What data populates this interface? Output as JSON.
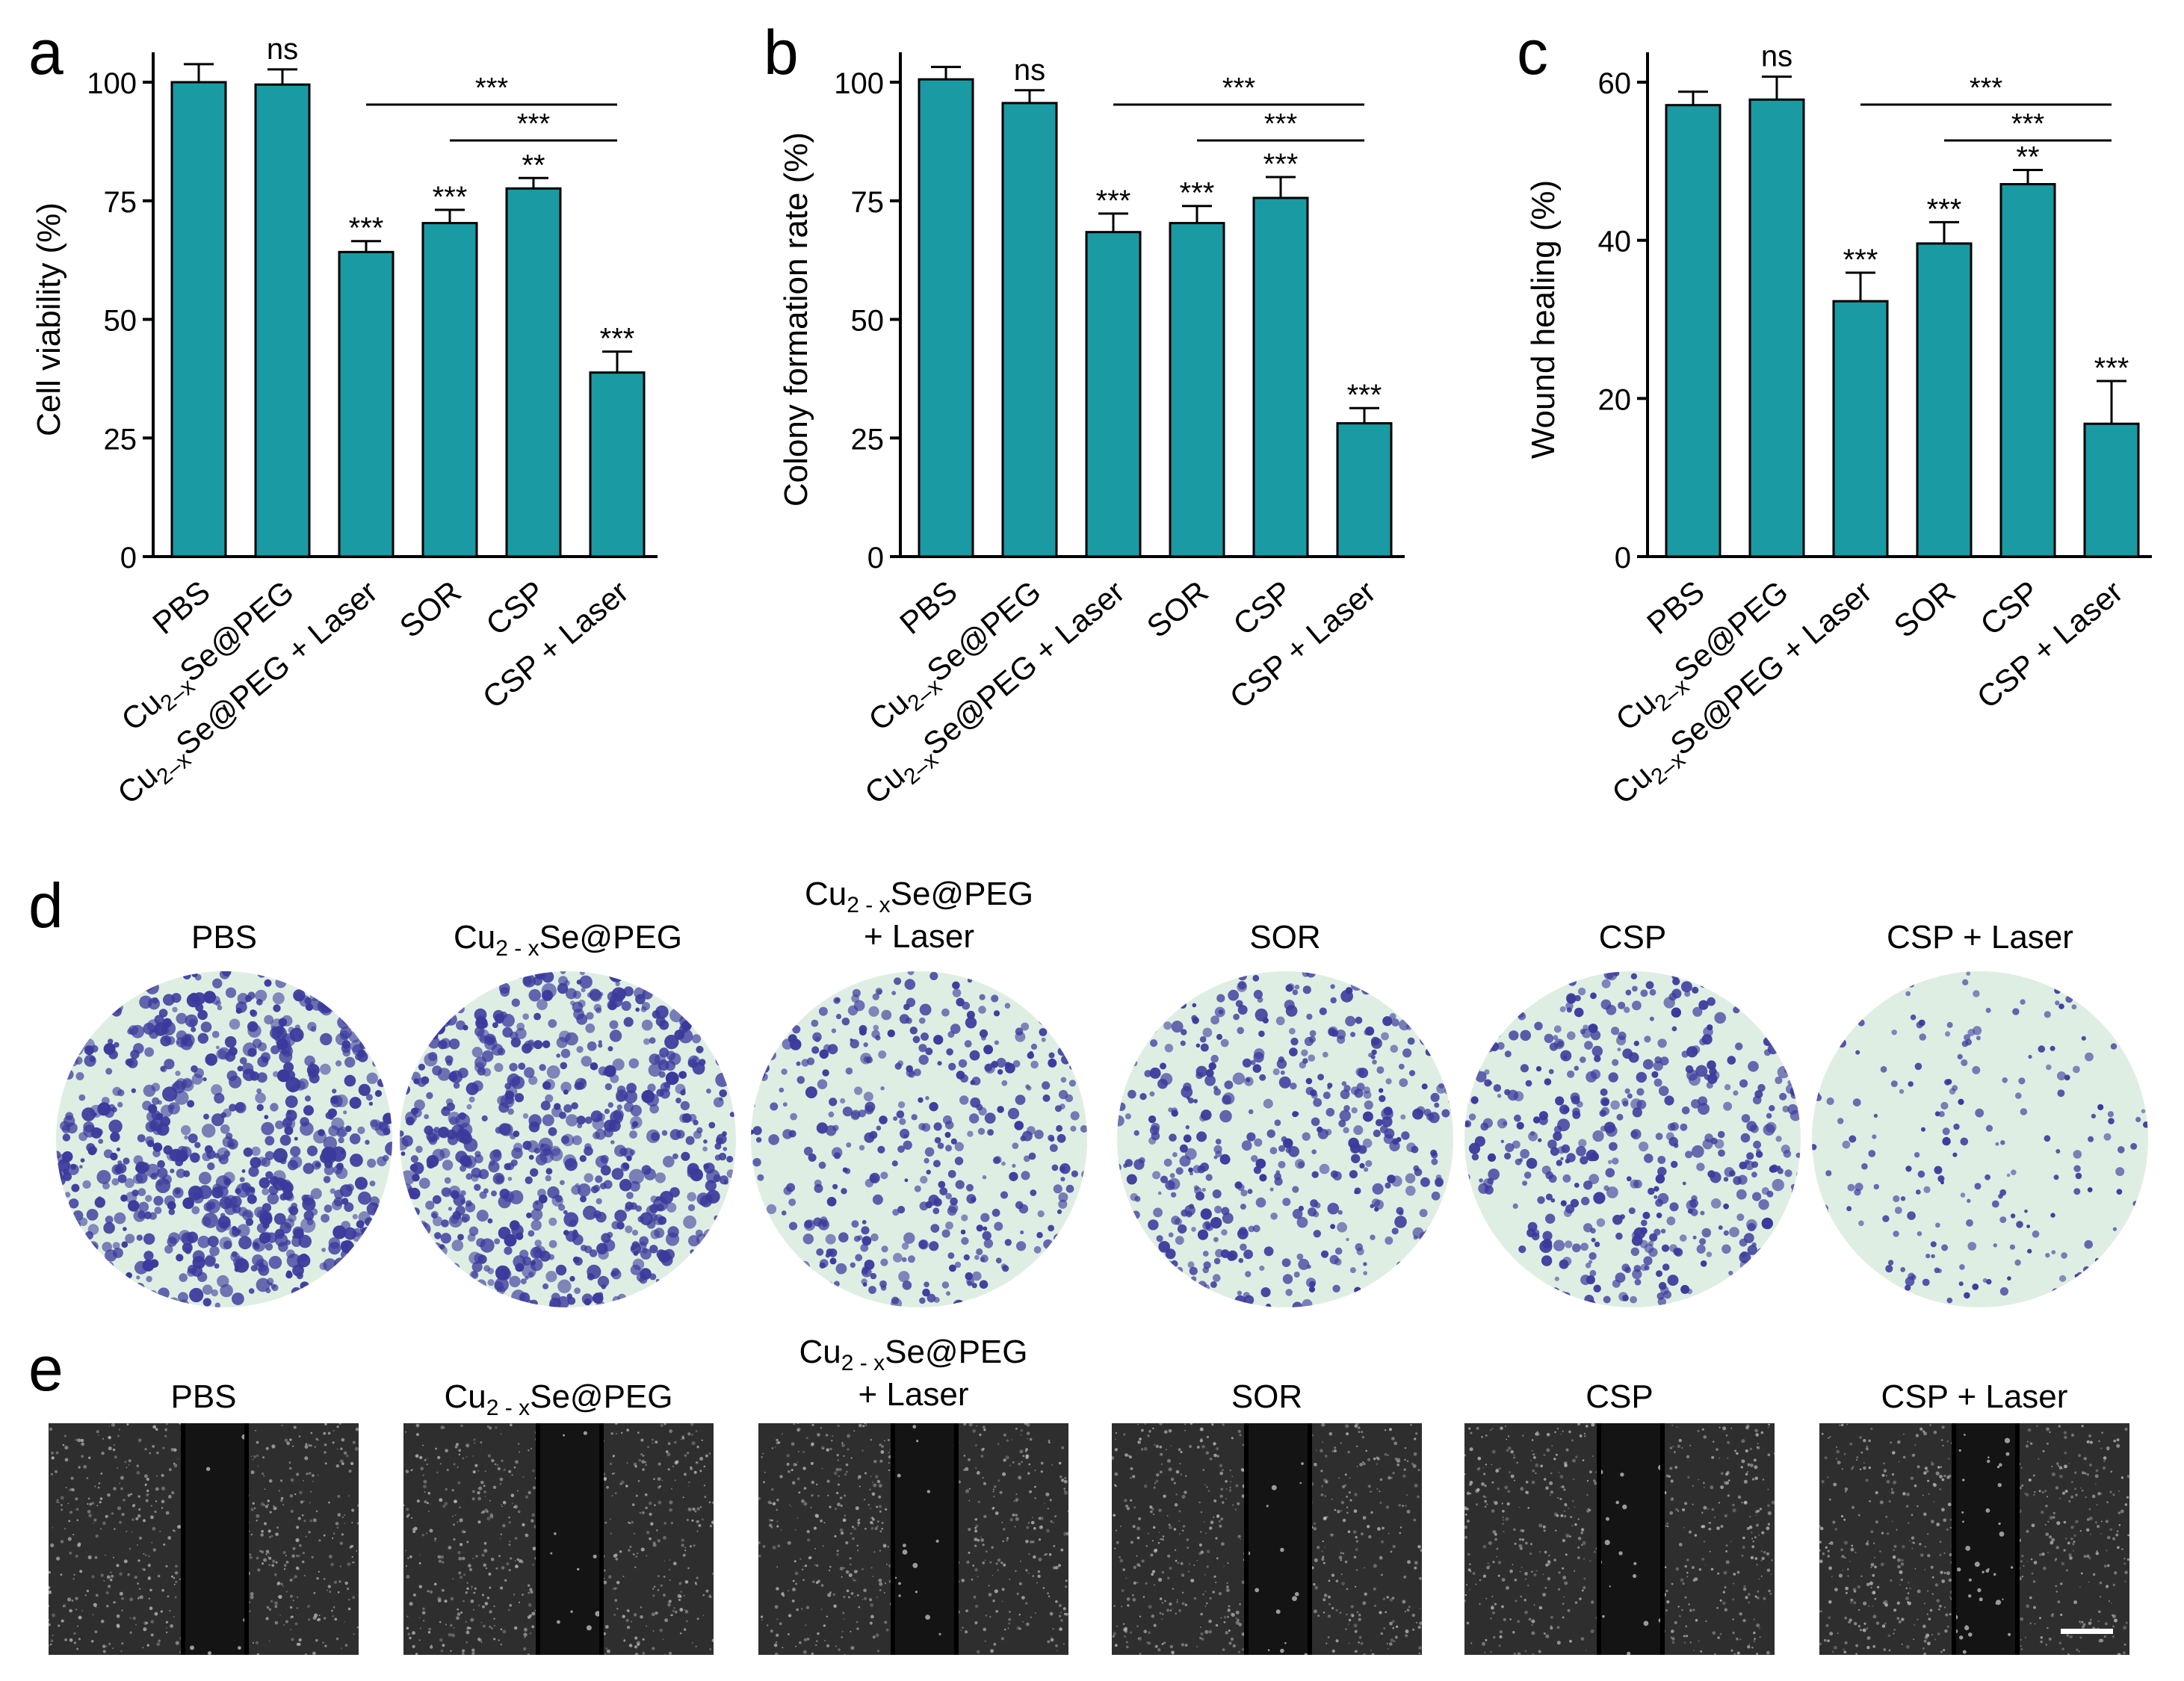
{
  "panels": {
    "a": "a",
    "b": "b",
    "c": "c",
    "d": "d",
    "e": "e"
  },
  "colors": {
    "bar": "#1a9aa3",
    "bar_edge": "#000000",
    "dish_bg": "#dfeee3",
    "colony": "#3b3a9c",
    "scratch_bg": "#2e2e2e",
    "scratch_gap": "#141414"
  },
  "chart_data": [
    {
      "type": "bar",
      "panel": "a",
      "ylabel": "Cell viability (%)",
      "ylim": [
        0,
        100
      ],
      "yticks": [
        0,
        25,
        50,
        75,
        100
      ],
      "categories": [
        "PBS",
        "Cu2–xSe@PEG",
        "Cu2–xSe@PEG + Laser",
        "SOR",
        "CSP",
        "CSP + Laser"
      ],
      "values": [
        100,
        99.5,
        64.2,
        70.3,
        77.6,
        38.8
      ],
      "errors": [
        3.8,
        3.2,
        2.3,
        2.8,
        2.2,
        4.4
      ],
      "labels": [
        "",
        "ns",
        "***",
        "***",
        "**",
        "***"
      ],
      "brackets": [
        {
          "from": 2,
          "to": 5,
          "label": "***"
        },
        {
          "from": 3,
          "to": 5,
          "label": "***"
        }
      ]
    },
    {
      "type": "bar",
      "panel": "b",
      "ylabel": "Colony formation rate (%)",
      "ylim": [
        0,
        100
      ],
      "yticks": [
        0,
        25,
        50,
        75,
        100
      ],
      "categories": [
        "PBS",
        "Cu2–xSe@PEG",
        "Cu2–xSe@PEG + Laser",
        "SOR",
        "CSP",
        "CSP + Laser"
      ],
      "values": [
        100.6,
        95.6,
        68.4,
        70.3,
        75.6,
        28.1
      ],
      "errors": [
        2.6,
        2.7,
        3.9,
        3.6,
        4.4,
        3.2
      ],
      "labels": [
        "",
        "ns",
        "***",
        "***",
        "***",
        "***"
      ],
      "brackets": [
        {
          "from": 2,
          "to": 5,
          "label": "***"
        },
        {
          "from": 3,
          "to": 5,
          "label": "***"
        }
      ]
    },
    {
      "type": "bar",
      "panel": "c",
      "ylabel": "Wound healing (%)",
      "ylim": [
        0,
        65
      ],
      "yticks": [
        0,
        20,
        40,
        60
      ],
      "categories": [
        "PBS",
        "Cu2–xSe@PEG",
        "Cu2–xSe@PEG + Laser",
        "SOR",
        "CSP",
        "CSP + Laser"
      ],
      "values": [
        57.1,
        57.8,
        32.3,
        39.6,
        47.1,
        16.8
      ],
      "errors": [
        1.7,
        2.9,
        3.6,
        2.7,
        1.8,
        5.4
      ],
      "labels": [
        "",
        "ns",
        "***",
        "***",
        "**",
        "***"
      ],
      "brackets": [
        {
          "from": 2,
          "to": 5,
          "label": "***"
        },
        {
          "from": 3,
          "to": 5,
          "label": "***"
        }
      ]
    }
  ],
  "colony_panel": {
    "groups": [
      {
        "line1": "PBS",
        "line2": "",
        "density": 0.95
      },
      {
        "line1": "Cu2 - xSe@PEG",
        "line2": "",
        "density": 0.9
      },
      {
        "line1": "Cu2 - xSe@PEG",
        "line2": "+ Laser",
        "density": 0.55
      },
      {
        "line1": "SOR",
        "line2": "",
        "density": 0.6
      },
      {
        "line1": "CSP",
        "line2": "",
        "density": 0.62
      },
      {
        "line1": "CSP + Laser",
        "line2": "",
        "density": 0.25
      }
    ]
  },
  "wound_panel": {
    "groups": [
      {
        "line1": "PBS",
        "line2": "",
        "cells_in_gap": 6
      },
      {
        "line1": "Cu2 - xSe@PEG",
        "line2": "",
        "cells_in_gap": 10
      },
      {
        "line1": "Cu2 - xSe@PEG",
        "line2": "+ Laser",
        "cells_in_gap": 14
      },
      {
        "line1": "SOR",
        "line2": "",
        "cells_in_gap": 14
      },
      {
        "line1": "CSP",
        "line2": "",
        "cells_in_gap": 16
      },
      {
        "line1": "CSP + Laser",
        "line2": "",
        "cells_in_gap": 40
      }
    ]
  }
}
